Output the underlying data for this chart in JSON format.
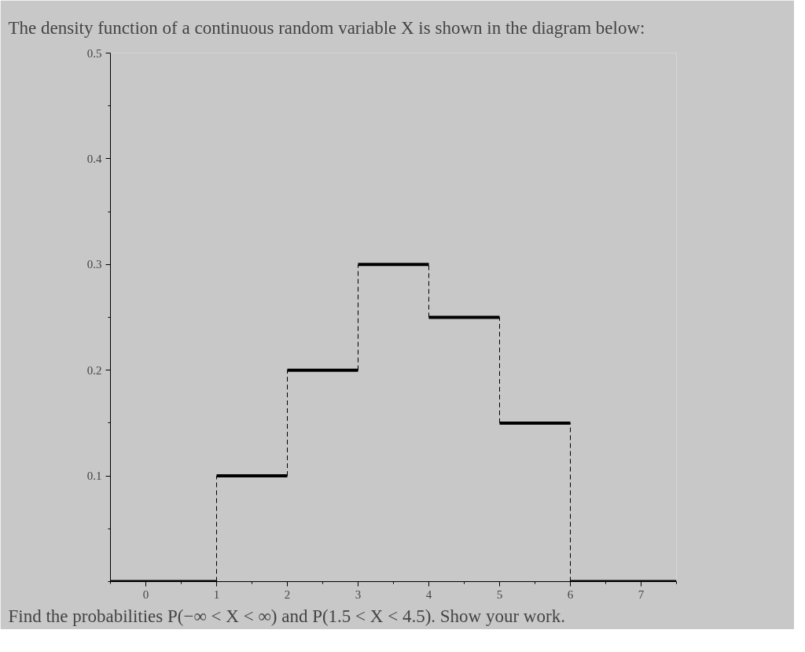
{
  "chart_data": {
    "type": "step",
    "title": "The density function of a continuous random variable X is shown in the diagram below:",
    "annotations": [
      "Find the probabilities P(−∞ < X < ∞) and P(1.5 < X < 4.5). Show your work."
    ],
    "x": [
      -0.5,
      1,
      2,
      3,
      4,
      5,
      6,
      7.5
    ],
    "series": [
      {
        "color": "#000000",
        "values": [
          0,
          0.1,
          0.2,
          0.3,
          0.25,
          0.15,
          0,
          0
        ]
      }
    ],
    "xlim": [
      -0.5,
      7.5
    ],
    "xticks": [
      0,
      1,
      2,
      3,
      4,
      5,
      6,
      7
    ],
    "ylim": [
      0,
      0.5
    ],
    "yticks": [
      0.1,
      0.2,
      0.3,
      0.4,
      0.5
    ],
    "grid": false
  }
}
